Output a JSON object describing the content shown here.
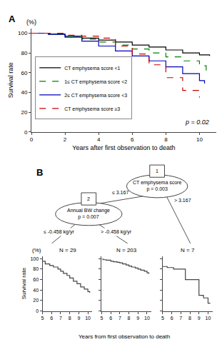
{
  "chart_data": [
    {
      "type": "step",
      "title": "A",
      "xlabel": "Years after first observation to death",
      "ylabel": "Survival rate",
      "annotations": [
        "(%)",
        "p = 0.02"
      ],
      "xlim": [
        0,
        11
      ],
      "xticks": [
        0,
        2,
        4,
        6,
        8,
        10
      ],
      "ylim": [
        0,
        105
      ],
      "yticks": [
        0,
        20,
        40,
        60,
        80,
        100
      ],
      "grid": false,
      "legend": "lower left",
      "series": [
        {
          "name": "CT emphysema score <1",
          "color": "#000000",
          "line_style": "solid",
          "x": [
            0,
            1,
            2,
            3,
            4,
            5,
            6,
            7,
            8,
            9,
            10,
            10.6
          ],
          "values": [
            100,
            99,
            97,
            95,
            93,
            91,
            88,
            86,
            83,
            80,
            78,
            77
          ]
        },
        {
          "name": "1≤ CT emphysema score <2",
          "color": "#008000",
          "line_style": "dashed",
          "x": [
            0,
            1,
            2,
            3,
            4,
            5,
            6,
            7,
            8,
            9,
            10,
            10.4
          ],
          "values": [
            100,
            99,
            97,
            94,
            91,
            88,
            84,
            80,
            76,
            72,
            67,
            60
          ]
        },
        {
          "name": "2≤ CT emphysema score <3",
          "color": "#0000bb",
          "line_style": "solid",
          "x": [
            0,
            1,
            2,
            3,
            4,
            5,
            6,
            7,
            8,
            9,
            10,
            10.3
          ],
          "values": [
            100,
            99,
            96,
            92,
            87,
            82,
            77,
            72,
            66,
            59,
            52,
            49
          ]
        },
        {
          "name": "CT emphysema score ≥3",
          "color": "#cc0000",
          "line_style": "dashed",
          "x": [
            0,
            1,
            2,
            3,
            4,
            5,
            6,
            7,
            8,
            9,
            10
          ],
          "values": [
            100,
            100,
            98,
            97,
            95,
            87,
            79,
            68,
            55,
            42,
            35
          ]
        }
      ]
    },
    {
      "type": "tree",
      "title": "B",
      "nodes": [
        {
          "number": "1",
          "label": "CT emphysema score\np = 0.003",
          "branches": [
            "≤ 3.167",
            "> 3.167"
          ]
        },
        {
          "number": "2",
          "label": "Annual BW change\np = 0.007",
          "branches": [
            "≤ -0.458 kg/yr",
            "> -0.458 kg/yr"
          ]
        }
      ]
    },
    {
      "type": "step",
      "title": "N = 29",
      "ylabel": "Survival rate",
      "annotations": [
        "(%)"
      ],
      "xlim": [
        5,
        10.5
      ],
      "xticks": [
        5,
        6,
        7,
        8,
        9,
        10
      ],
      "ylim": [
        0,
        105
      ],
      "yticks": [
        0,
        20,
        40,
        60,
        80,
        100
      ],
      "grid": false,
      "series": [
        {
          "color": "#444444",
          "x": [
            5,
            5.3,
            5.8,
            6.2,
            6.7,
            7.0,
            7.3,
            7.7,
            8.0,
            8.4,
            8.8,
            9.2,
            9.6,
            10.0,
            10.2
          ],
          "values": [
            95,
            90,
            87,
            84,
            80,
            76,
            72,
            68,
            63,
            57,
            52,
            46,
            42,
            37,
            35
          ]
        }
      ]
    },
    {
      "type": "step",
      "title": "N = 203",
      "xlabel": "Years from first observation to death",
      "xlim": [
        5,
        10.5
      ],
      "xticks": [
        5,
        6,
        7,
        8,
        9,
        10
      ],
      "ylim": [
        0,
        105
      ],
      "yticks": [
        0,
        20,
        40,
        60,
        80,
        100
      ],
      "grid": false,
      "tick_labels": "x",
      "series": [
        {
          "color": "#444444",
          "x": [
            5,
            5.2,
            5.5,
            6,
            6.3,
            6.7,
            7,
            7.3,
            7.7,
            8,
            8.3,
            8.7,
            9,
            9.3,
            9.7,
            10,
            10.2
          ],
          "values": [
            99,
            98,
            97,
            95,
            94,
            93,
            92,
            90,
            88,
            86,
            84,
            82,
            80,
            78,
            76,
            73,
            71
          ]
        }
      ]
    },
    {
      "type": "step",
      "title": "N = 7",
      "xlim": [
        5,
        10.5
      ],
      "xticks": [
        5,
        6,
        7,
        8,
        9,
        10
      ],
      "ylim": [
        0,
        105
      ],
      "yticks": [
        0,
        20,
        40,
        60,
        80,
        100
      ],
      "grid": false,
      "tick_labels": "x",
      "series": [
        {
          "color": "#444444",
          "x": [
            5,
            5.1,
            5.5,
            5.8,
            6.2,
            7.0,
            7.5,
            8.2,
            9.0,
            9.5,
            10.0,
            10.2
          ],
          "values": [
            85,
            85,
            83,
            83,
            80,
            80,
            60,
            60,
            30,
            25,
            15,
            14
          ]
        }
      ]
    }
  ]
}
